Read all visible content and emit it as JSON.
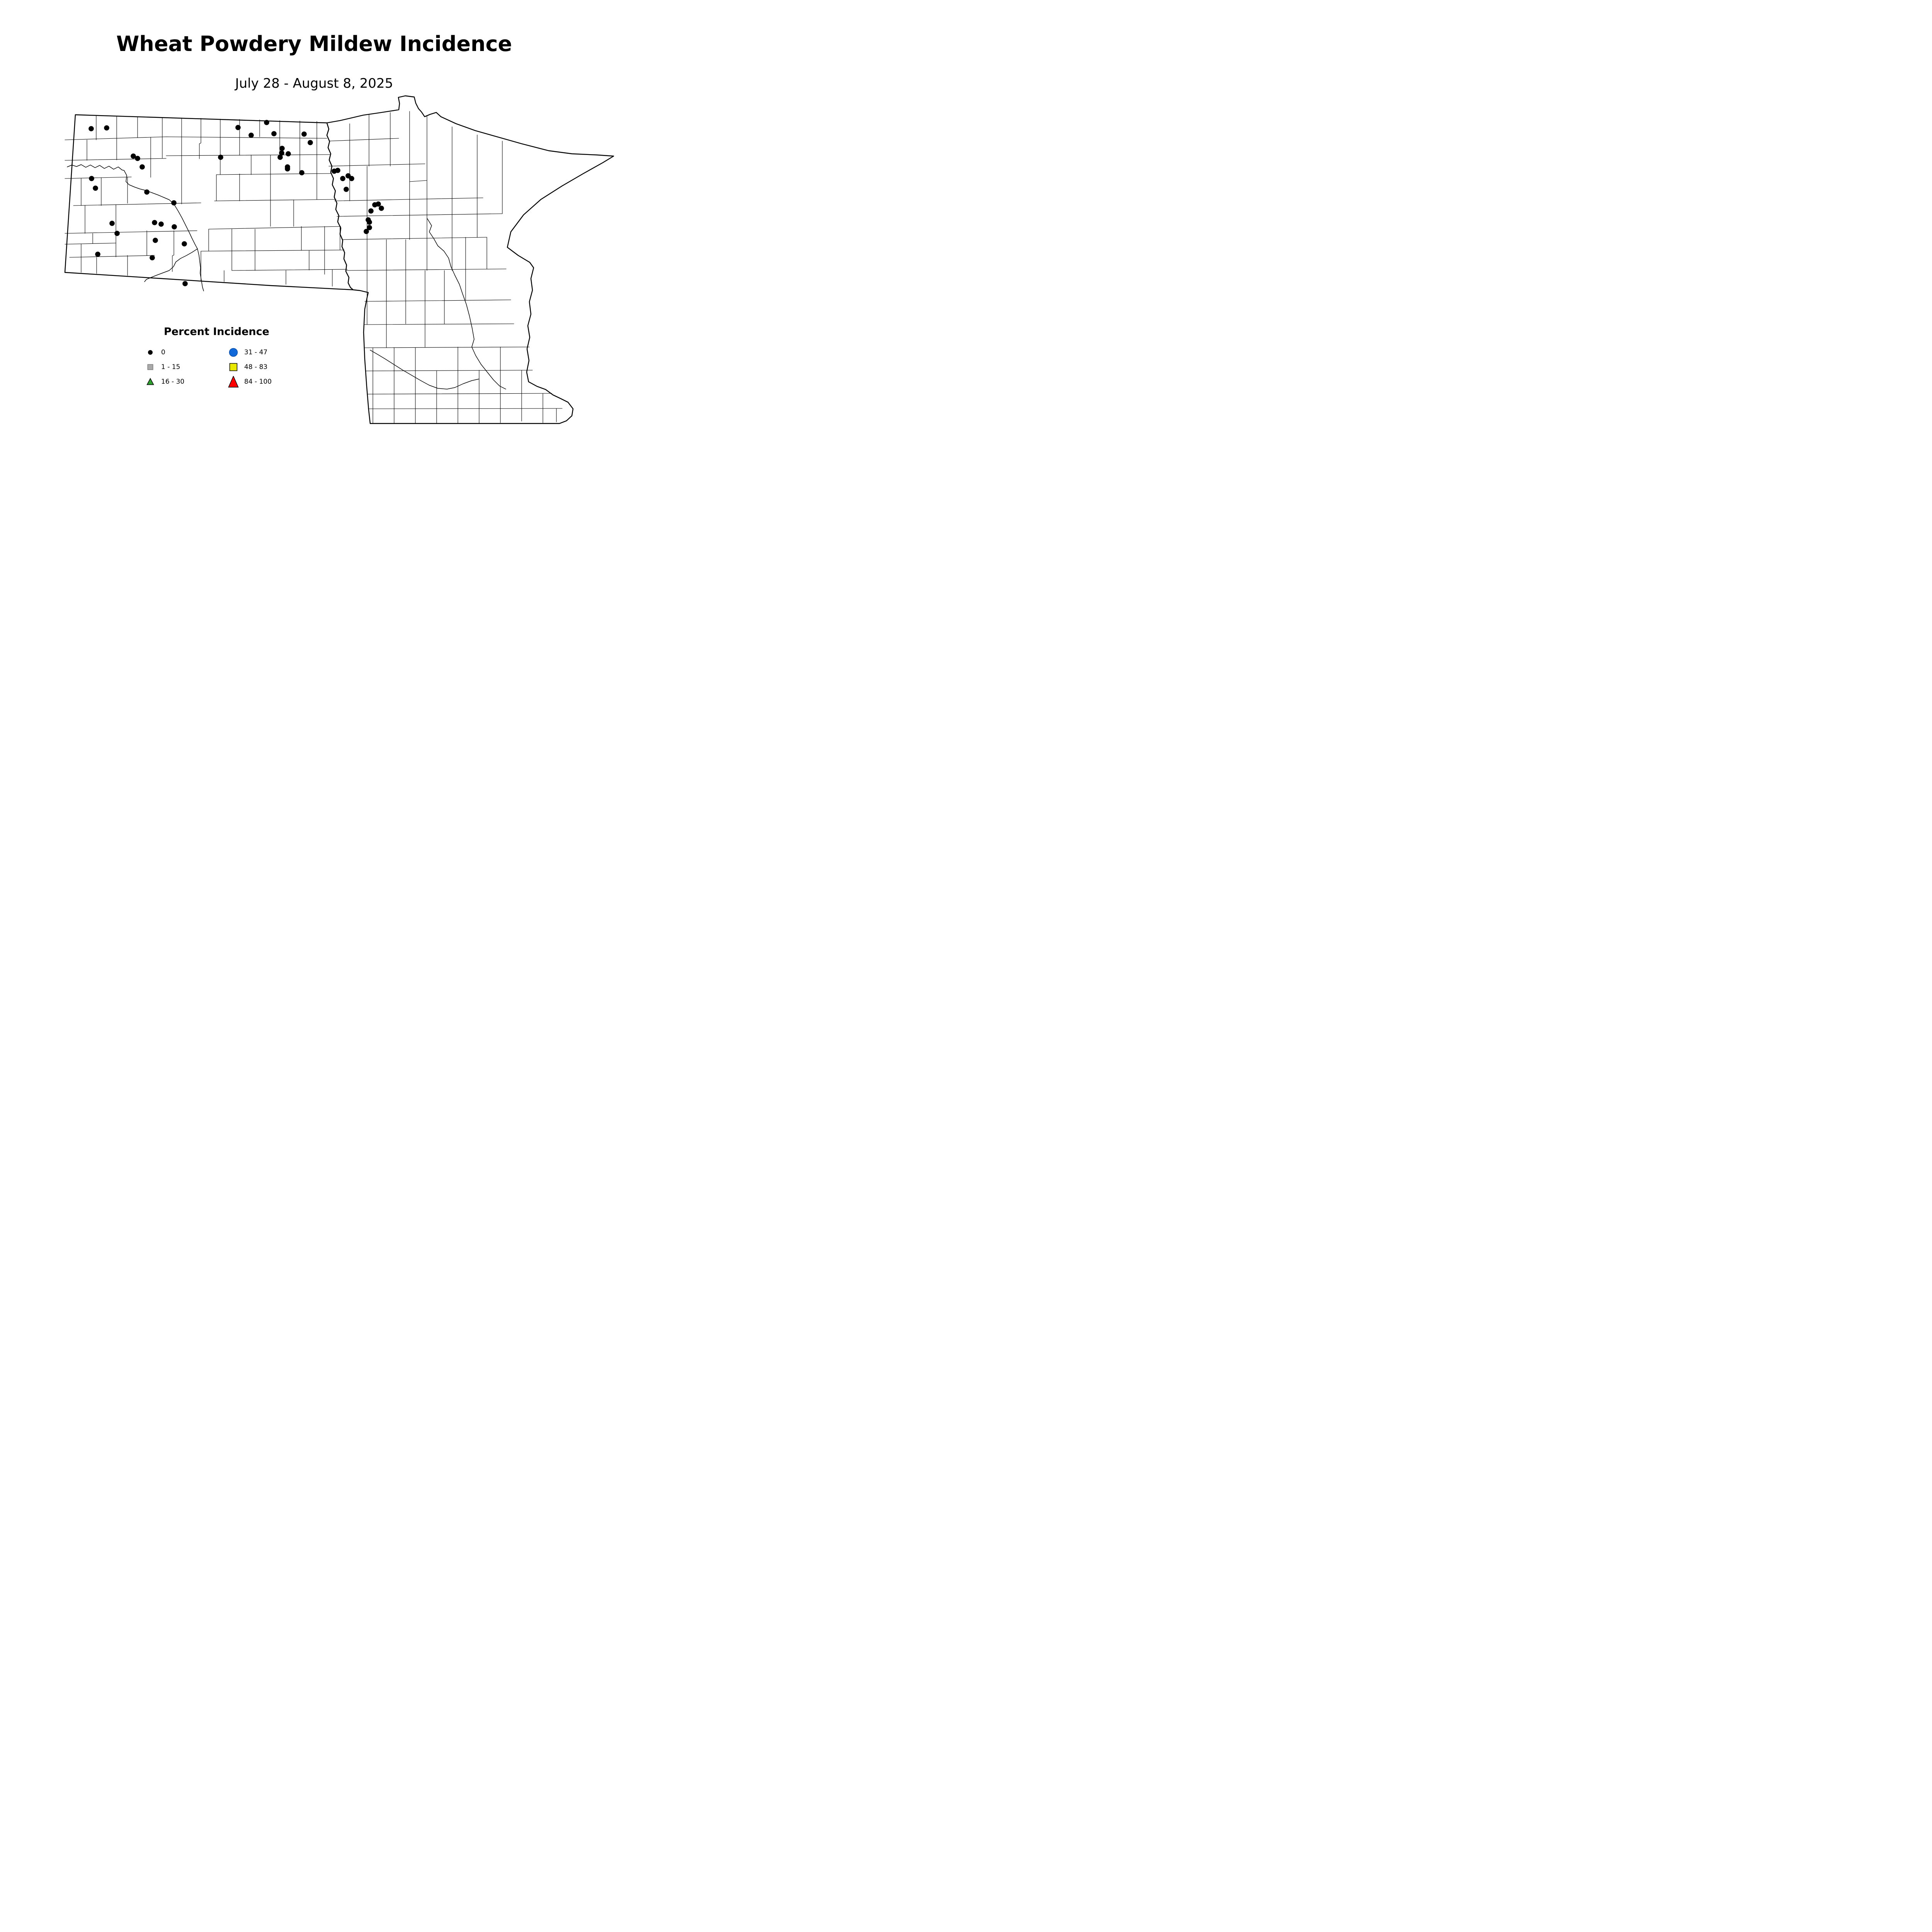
{
  "title": "Wheat Powdery Mildew Incidence",
  "subtitle": "July 28 - August 8, 2025",
  "legend": {
    "title": "Percent Incidence",
    "items": [
      {
        "label": "0",
        "symbol": "dot",
        "color": "#000000",
        "stroke": "none"
      },
      {
        "label": "1 - 15",
        "symbol": "square-small",
        "color": "#A9A9A9",
        "stroke": "#787878"
      },
      {
        "label": "16 - 30",
        "symbol": "triangle-small",
        "color": "#2EA12E",
        "stroke": "#000000"
      },
      {
        "label": "31 - 47",
        "symbol": "circle",
        "color": "#1169D9",
        "stroke": "#0B4FA8"
      },
      {
        "label": "48 - 83",
        "symbol": "square",
        "color": "#E8E800",
        "stroke": "#000000"
      },
      {
        "label": "84 - 100",
        "symbol": "triangle",
        "color": "#FF0000",
        "stroke": "#000000"
      }
    ]
  },
  "map": {
    "site_incidence_class": "0",
    "site_color": "#000000",
    "sites": [
      [
        236,
        333
      ],
      [
        276,
        331
      ],
      [
        345,
        404
      ],
      [
        356,
        410
      ],
      [
        368,
        432
      ],
      [
        237,
        462
      ],
      [
        247,
        487
      ],
      [
        290,
        578
      ],
      [
        303,
        604
      ],
      [
        253,
        658
      ],
      [
        380,
        497
      ],
      [
        450,
        525
      ],
      [
        400,
        576
      ],
      [
        417,
        580
      ],
      [
        451,
        587
      ],
      [
        402,
        622
      ],
      [
        477,
        631
      ],
      [
        394,
        667
      ],
      [
        479,
        734
      ],
      [
        571,
        407
      ],
      [
        616,
        330
      ],
      [
        650,
        350
      ],
      [
        690,
        317
      ],
      [
        709,
        346
      ],
      [
        787,
        347
      ],
      [
        803,
        369
      ],
      [
        730,
        384
      ],
      [
        729,
        396
      ],
      [
        746,
        398
      ],
      [
        725,
        407
      ],
      [
        744,
        432
      ],
      [
        744,
        437
      ],
      [
        781,
        447
      ],
      [
        865,
        443
      ],
      [
        874,
        441
      ],
      [
        901,
        455
      ],
      [
        887,
        462
      ],
      [
        910,
        462
      ],
      [
        896,
        490
      ],
      [
        970,
        530
      ],
      [
        979,
        528
      ],
      [
        987,
        539
      ],
      [
        960,
        546
      ],
      [
        953,
        569
      ],
      [
        956,
        575
      ],
      [
        956,
        589
      ],
      [
        948,
        599
      ]
    ]
  }
}
